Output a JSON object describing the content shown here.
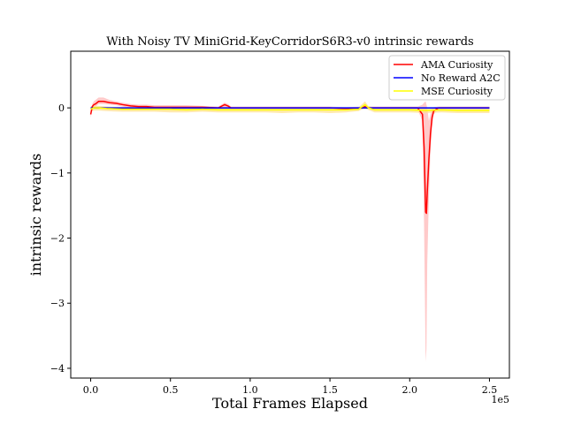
{
  "chart_data": {
    "type": "line",
    "title": "With Noisy TV MiniGrid-KeyCorridorS6R3-v0 intrinsic rewards",
    "xlabel": "Total Frames Elapsed",
    "ylabel": "intrinsic rewards",
    "x_offset_label": "1e5",
    "xlim": [
      -12500,
      262500
    ],
    "ylim": [
      -4.15,
      0.87
    ],
    "xticks": [
      0,
      50000,
      100000,
      150000,
      200000,
      250000
    ],
    "xtick_labels": [
      "0.0",
      "0.5",
      "1.0",
      "1.5",
      "2.0",
      "2.5"
    ],
    "yticks": [
      0,
      -1,
      -2,
      -3,
      -4
    ],
    "ytick_labels": [
      "0",
      "−1",
      "−2",
      "−3",
      "−4"
    ],
    "legend_position": "upper right",
    "series": [
      {
        "name": "AMA Curiosity",
        "color": "#ff0000",
        "band_color": "#ffb3b3",
        "x": [
          0,
          1000,
          2000,
          3000,
          5000,
          8000,
          12000,
          16000,
          20000,
          25000,
          30000,
          35000,
          40000,
          50000,
          60000,
          70000,
          80000,
          84000,
          86000,
          88000,
          92000,
          100000,
          110000,
          120000,
          130000,
          140000,
          150000,
          160000,
          170000,
          172000,
          174000,
          180000,
          190000,
          200000,
          205000,
          208000,
          209000,
          210000,
          210500,
          211000,
          212000,
          213000,
          214000,
          215000,
          218000,
          222000,
          230000,
          240000,
          250000
        ],
        "values": [
          -0.1,
          0.02,
          0.05,
          0.06,
          0.1,
          0.1,
          0.08,
          0.07,
          0.05,
          0.03,
          0.02,
          0.02,
          0.01,
          0.01,
          0.01,
          0.01,
          0.0,
          0.05,
          0.03,
          0.0,
          0.0,
          0.0,
          0.0,
          0.0,
          0.0,
          0.0,
          0.0,
          -0.01,
          0.0,
          0.02,
          0.0,
          0.0,
          0.0,
          0.0,
          0.0,
          -0.1,
          -0.6,
          -1.6,
          -1.62,
          -1.3,
          -0.8,
          -0.4,
          -0.15,
          -0.05,
          0.0,
          0.0,
          0.0,
          0.0,
          0.0
        ],
        "band_lower": [
          -0.15,
          -0.02,
          0.0,
          0.02,
          0.06,
          0.06,
          0.05,
          0.04,
          0.02,
          0.0,
          -0.01,
          -0.01,
          -0.02,
          -0.02,
          -0.02,
          -0.02,
          -0.02,
          0.0,
          -0.01,
          -0.02,
          -0.02,
          -0.02,
          -0.02,
          -0.02,
          -0.02,
          -0.02,
          -0.02,
          -0.03,
          -0.02,
          -0.01,
          -0.02,
          -0.02,
          -0.02,
          -0.02,
          -0.03,
          -0.2,
          -1.8,
          -3.9,
          -3.7,
          -2.4,
          -1.4,
          -0.7,
          -0.3,
          -0.1,
          -0.02,
          -0.02,
          -0.02,
          -0.02,
          -0.02
        ],
        "band_upper": [
          -0.05,
          0.06,
          0.1,
          0.12,
          0.16,
          0.16,
          0.12,
          0.1,
          0.08,
          0.06,
          0.05,
          0.05,
          0.04,
          0.04,
          0.04,
          0.03,
          0.02,
          0.08,
          0.06,
          0.02,
          0.02,
          0.02,
          0.02,
          0.02,
          0.02,
          0.02,
          0.02,
          0.01,
          0.02,
          0.04,
          0.02,
          0.02,
          0.02,
          0.02,
          0.02,
          0.05,
          0.08,
          0.1,
          0.05,
          0.0,
          -0.2,
          -0.1,
          0.0,
          0.01,
          0.02,
          0.02,
          0.02,
          0.02,
          0.02
        ]
      },
      {
        "name": "No Reward A2C",
        "color": "#0000ff",
        "band_color": "#b3b3ff",
        "x": [
          0,
          5000,
          10000,
          50000,
          100000,
          150000,
          200000,
          250000
        ],
        "values": [
          0.0,
          0.0,
          0.0,
          0.0,
          0.0,
          0.0,
          0.0,
          0.0
        ],
        "band_lower": [
          0.0,
          0.0,
          0.0,
          0.0,
          0.0,
          0.0,
          0.0,
          0.0
        ],
        "band_upper": [
          0.0,
          0.0,
          0.0,
          0.0,
          0.0,
          0.0,
          0.0,
          0.0
        ]
      },
      {
        "name": "MSE Curiosity",
        "color": "#ffff00",
        "band_color": "#ffe08a",
        "x": [
          0,
          2000,
          5000,
          10000,
          20000,
          30000,
          40000,
          50000,
          60000,
          70000,
          80000,
          90000,
          100000,
          110000,
          120000,
          130000,
          140000,
          150000,
          160000,
          168000,
          172000,
          174000,
          178000,
          190000,
          200000,
          210000,
          220000,
          230000,
          240000,
          250000
        ],
        "values": [
          -0.02,
          0.0,
          0.0,
          -0.01,
          -0.02,
          -0.02,
          -0.02,
          -0.02,
          -0.03,
          -0.02,
          -0.03,
          -0.03,
          -0.03,
          -0.03,
          -0.03,
          -0.03,
          -0.03,
          -0.03,
          -0.03,
          -0.02,
          0.05,
          0.0,
          -0.03,
          -0.03,
          -0.03,
          -0.04,
          -0.03,
          -0.04,
          -0.04,
          -0.04
        ],
        "band_lower": [
          -0.06,
          -0.04,
          -0.04,
          -0.05,
          -0.06,
          -0.06,
          -0.06,
          -0.07,
          -0.07,
          -0.06,
          -0.07,
          -0.07,
          -0.07,
          -0.07,
          -0.08,
          -0.07,
          -0.07,
          -0.08,
          -0.07,
          -0.05,
          0.0,
          -0.03,
          -0.07,
          -0.07,
          -0.07,
          -0.08,
          -0.07,
          -0.08,
          -0.08,
          -0.08
        ],
        "band_upper": [
          0.02,
          0.03,
          0.03,
          0.02,
          0.01,
          0.01,
          0.01,
          0.01,
          0.0,
          0.01,
          0.0,
          0.0,
          0.0,
          0.0,
          0.0,
          0.0,
          0.0,
          0.0,
          0.0,
          0.01,
          0.1,
          0.03,
          0.0,
          0.0,
          0.0,
          -0.01,
          0.0,
          -0.01,
          -0.01,
          -0.01
        ]
      }
    ],
    "reference_line": {
      "y": 0,
      "color": "#000000"
    }
  }
}
